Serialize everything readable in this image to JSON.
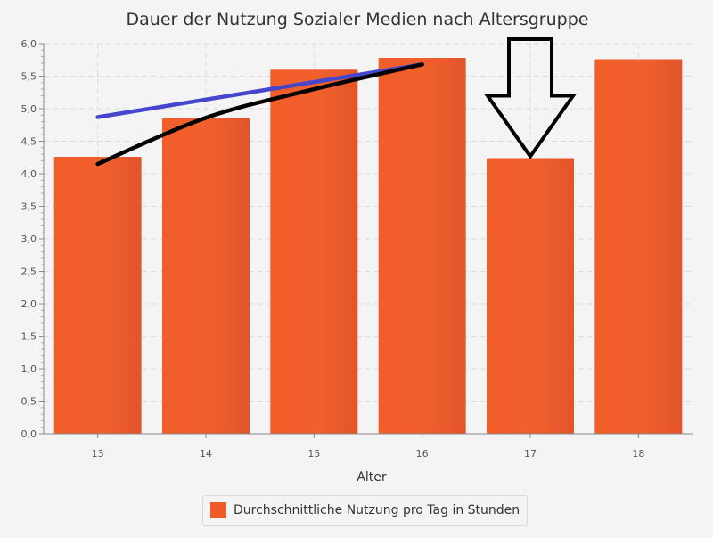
{
  "chart_data": {
    "type": "bar",
    "title": "Dauer der Nutzung Sozialer Medien nach Altersgruppe",
    "xlabel": "Alter",
    "ylabel": "",
    "categories": [
      "13",
      "14",
      "15",
      "16",
      "17",
      "18"
    ],
    "series": [
      {
        "name": "Durchschnittliche Nutzung pro Tag in Stunden",
        "values": [
          4.26,
          4.85,
          5.6,
          5.78,
          4.24,
          5.76
        ],
        "color": "#f05a28"
      }
    ],
    "ylim": [
      0,
      6.0
    ],
    "ytick_step": 0.5,
    "ytick_labels": [
      "0,0",
      "0,5",
      "1,0",
      "1,5",
      "2,0",
      "2,5",
      "3,0",
      "3,5",
      "4,0",
      "4,5",
      "5,0",
      "5,5",
      "6,0"
    ],
    "grid": true,
    "legend_position": "bottom-center",
    "annotations": [
      {
        "type": "straight-line",
        "color": "#4646cc",
        "from": {
          "x": "13",
          "y": 4.87
        },
        "to": {
          "x": "16",
          "y": 5.68
        }
      },
      {
        "type": "curve",
        "color": "#000000",
        "points": [
          {
            "x": "13",
            "y": 4.15
          },
          {
            "x": "14",
            "y": 4.86
          },
          {
            "x": "15",
            "y": 5.3
          },
          {
            "x": "16",
            "y": 5.68
          }
        ]
      },
      {
        "type": "down-arrow",
        "color": "#000000",
        "target": {
          "x": "17",
          "y": 4.24
        }
      }
    ]
  }
}
